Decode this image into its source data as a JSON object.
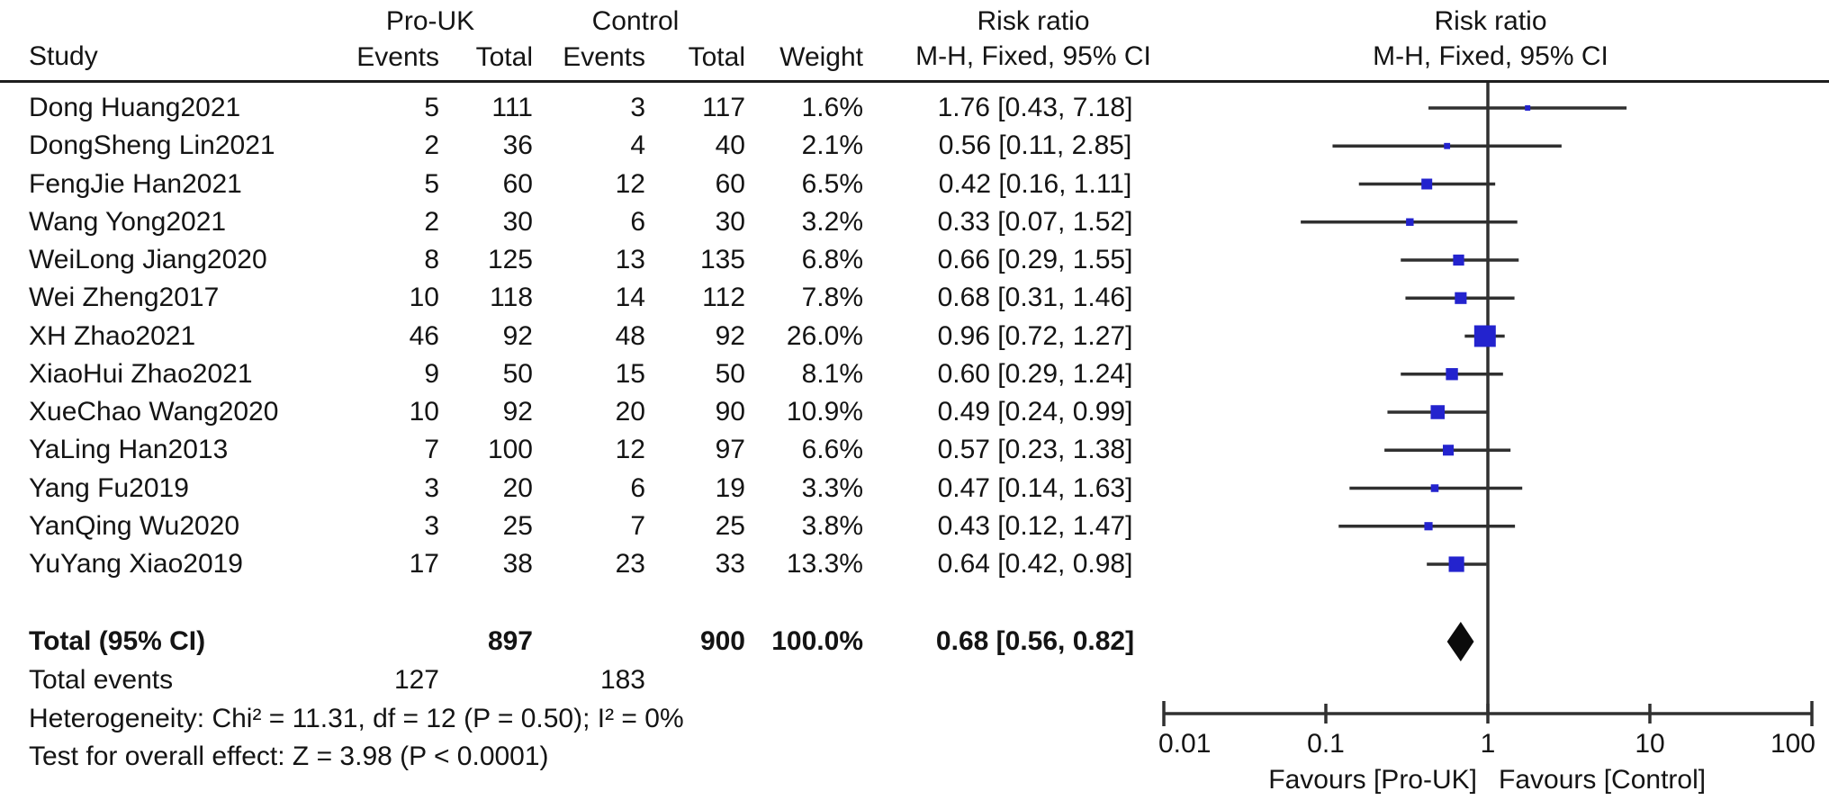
{
  "figure": {
    "columns": {
      "group1": "Pro-UK",
      "group2": "Control",
      "study": "Study",
      "events1": "Events",
      "total1": "Total",
      "events2": "Events",
      "total2": "Total",
      "weight": "Weight",
      "rr_header_line1": "Risk ratio",
      "rr_header_line2": "M-H, Fixed, 95% CI",
      "plot_header_line1": "Risk ratio",
      "plot_header_line2": "M-H, Fixed, 95% CI"
    },
    "summary": {
      "total_label": "Total (95% CI)",
      "total_n1": "897",
      "total_n2": "900",
      "total_weight": "100.0%",
      "total_rr_text": "0.68 [0.56, 0.82]",
      "total_events_label": "Total events",
      "total_events_1": "127",
      "total_events_2": "183",
      "heterogeneity": "Heterogeneity: Chi² = 11.31, df = 12 (P = 0.50); I² = 0%",
      "overall_effect": "Test for overall effect: Z = 3.98 (P < 0.0001)"
    }
  },
  "chart_data": {
    "type": "forest",
    "effect_measure": "Risk ratio",
    "method": "M-H, Fixed, 95% CI",
    "x_scale": "log10",
    "xlim": [
      0.01,
      100
    ],
    "x_tick_values": [
      0.01,
      0.1,
      1,
      10,
      100
    ],
    "x_tick_labels": [
      "0.01",
      "0.1",
      "1",
      "10",
      "100"
    ],
    "favours_left": "Favours [Pro-UK]",
    "favours_right": "Favours [Control]",
    "studies": [
      {
        "study": "Dong Huang2021",
        "events1": 5,
        "total1": 111,
        "events2": 3,
        "total2": 117,
        "weight": "1.6%",
        "weight_pct": 1.6,
        "rr": 1.76,
        "ci_low": 0.43,
        "ci_high": 7.18,
        "rr_text": "1.76 [0.43, 7.18]"
      },
      {
        "study": "DongSheng Lin2021",
        "events1": 2,
        "total1": 36,
        "events2": 4,
        "total2": 40,
        "weight": "2.1%",
        "weight_pct": 2.1,
        "rr": 0.56,
        "ci_low": 0.11,
        "ci_high": 2.85,
        "rr_text": "0.56 [0.11, 2.85]"
      },
      {
        "study": "FengJie Han2021",
        "events1": 5,
        "total1": 60,
        "events2": 12,
        "total2": 60,
        "weight": "6.5%",
        "weight_pct": 6.5,
        "rr": 0.42,
        "ci_low": 0.16,
        "ci_high": 1.11,
        "rr_text": "0.42 [0.16, 1.11]"
      },
      {
        "study": "Wang Yong2021",
        "events1": 2,
        "total1": 30,
        "events2": 6,
        "total2": 30,
        "weight": "3.2%",
        "weight_pct": 3.2,
        "rr": 0.33,
        "ci_low": 0.07,
        "ci_high": 1.52,
        "rr_text": "0.33 [0.07, 1.52]"
      },
      {
        "study": "WeiLong Jiang2020",
        "events1": 8,
        "total1": 125,
        "events2": 13,
        "total2": 135,
        "weight": "6.8%",
        "weight_pct": 6.8,
        "rr": 0.66,
        "ci_low": 0.29,
        "ci_high": 1.55,
        "rr_text": "0.66 [0.29, 1.55]"
      },
      {
        "study": "Wei Zheng2017",
        "events1": 10,
        "total1": 118,
        "events2": 14,
        "total2": 112,
        "weight": "7.8%",
        "weight_pct": 7.8,
        "rr": 0.68,
        "ci_low": 0.31,
        "ci_high": 1.46,
        "rr_text": "0.68 [0.31, 1.46]"
      },
      {
        "study": "XH Zhao2021",
        "events1": 46,
        "total1": 92,
        "events2": 48,
        "total2": 92,
        "weight": "26.0%",
        "weight_pct": 26.0,
        "rr": 0.96,
        "ci_low": 0.72,
        "ci_high": 1.27,
        "rr_text": "0.96 [0.72, 1.27]"
      },
      {
        "study": "XiaoHui Zhao2021",
        "events1": 9,
        "total1": 50,
        "events2": 15,
        "total2": 50,
        "weight": "8.1%",
        "weight_pct": 8.1,
        "rr": 0.6,
        "ci_low": 0.29,
        "ci_high": 1.24,
        "rr_text": "0.60 [0.29, 1.24]"
      },
      {
        "study": "XueChao Wang2020",
        "events1": 10,
        "total1": 92,
        "events2": 20,
        "total2": 90,
        "weight": "10.9%",
        "weight_pct": 10.9,
        "rr": 0.49,
        "ci_low": 0.24,
        "ci_high": 0.99,
        "rr_text": "0.49 [0.24, 0.99]"
      },
      {
        "study": "YaLing Han2013",
        "events1": 7,
        "total1": 100,
        "events2": 12,
        "total2": 97,
        "weight": "6.6%",
        "weight_pct": 6.6,
        "rr": 0.57,
        "ci_low": 0.23,
        "ci_high": 1.38,
        "rr_text": "0.57 [0.23, 1.38]"
      },
      {
        "study": "Yang Fu2019",
        "events1": 3,
        "total1": 20,
        "events2": 6,
        "total2": 19,
        "weight": "3.3%",
        "weight_pct": 3.3,
        "rr": 0.47,
        "ci_low": 0.14,
        "ci_high": 1.63,
        "rr_text": "0.47 [0.14, 1.63]"
      },
      {
        "study": "YanQing Wu2020",
        "events1": 3,
        "total1": 25,
        "events2": 7,
        "total2": 25,
        "weight": "3.8%",
        "weight_pct": 3.8,
        "rr": 0.43,
        "ci_low": 0.12,
        "ci_high": 1.47,
        "rr_text": "0.43 [0.12, 1.47]"
      },
      {
        "study": "YuYang Xiao2019",
        "events1": 17,
        "total1": 38,
        "events2": 23,
        "total2": 33,
        "weight": "13.3%",
        "weight_pct": 13.3,
        "rr": 0.64,
        "ci_low": 0.42,
        "ci_high": 0.98,
        "rr_text": "0.64 [0.42, 0.98]"
      }
    ],
    "total": {
      "rr": 0.68,
      "ci_low": 0.56,
      "ci_high": 0.82,
      "n1": 897,
      "n2": 900,
      "events1": 127,
      "events2": 183,
      "weight_pct": 100.0
    },
    "heterogeneity": {
      "chi2": 11.31,
      "df": 12,
      "p": 0.5,
      "i2_pct": 0
    },
    "overall_effect": {
      "z": 3.98,
      "p": "< 0.0001"
    },
    "colors": {
      "marker": "#2323CE",
      "ci_line": "#303030",
      "diamond": "#0b0b0b",
      "axis": "#303030",
      "text": "#141414"
    }
  }
}
